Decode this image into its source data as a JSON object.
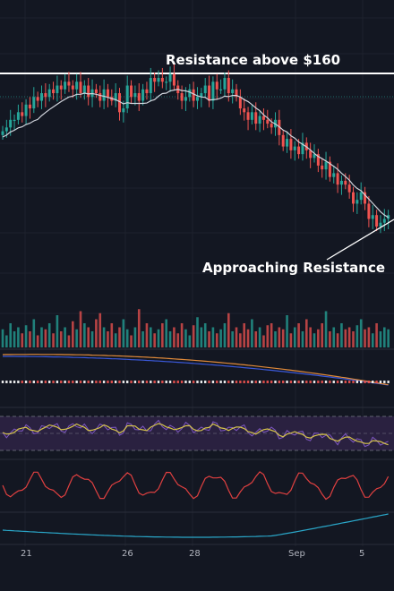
{
  "annotations": {
    "resistance_top": "Resistance above $160",
    "approaching": "Approaching Resistance"
  },
  "colors": {
    "background": "#131722",
    "grid": "#1e222d",
    "up": "#26a69a",
    "down": "#ef5350",
    "ma": "#d1d4dc",
    "rsi": "#d4c24a",
    "rsi_band": "#2a2140",
    "stoch": "#e04040",
    "cci": "#2aa7c9",
    "macd_fast": "#3a58d8",
    "macd_slow": "#e08a3a"
  },
  "chart_data": {
    "type": "line",
    "x_tick_labels": [
      "21",
      "26",
      "28",
      "Sep",
      "5"
    ],
    "panels": [
      "price",
      "volume",
      "macd",
      "rsi",
      "stochastic",
      "cci"
    ],
    "price_close": [
      147,
      148,
      150,
      150,
      152,
      151,
      154,
      153,
      156,
      155,
      157,
      156,
      158,
      157,
      159,
      158,
      160,
      159,
      158,
      160,
      157,
      159,
      156,
      158,
      157,
      155,
      158,
      156,
      155,
      157,
      152,
      153,
      159,
      156,
      157,
      155,
      158,
      157,
      161,
      160,
      161,
      160,
      160,
      162,
      159,
      157,
      155,
      156,
      158,
      155,
      156,
      157,
      159,
      155,
      160,
      158,
      158,
      161,
      157,
      158,
      156,
      153,
      152,
      150,
      152,
      149,
      151,
      150,
      149,
      148,
      150,
      146,
      143,
      145,
      142,
      143,
      141,
      144,
      142,
      140,
      141,
      138,
      137,
      139,
      135,
      136,
      133,
      134,
      133,
      131,
      128,
      129,
      131,
      128,
      124,
      125,
      122,
      123,
      124,
      125
    ],
    "series": [
      {
        "name": "",
        "values": [
          0.45,
          0.3,
          0.6,
          0.4,
          0.5,
          0.35,
          0.55,
          0.4,
          0.7,
          0.3,
          0.5,
          0.45,
          0.6,
          0.35,
          0.8,
          0.4,
          0.5,
          0.3,
          0.65,
          0.45,
          0.9,
          0.6,
          0.5,
          0.4,
          0.7,
          0.85,
          0.5,
          0.4,
          0.6,
          0.35,
          0.5,
          0.7,
          0.45,
          0.3,
          0.5,
          0.95,
          0.4,
          0.6,
          0.5,
          0.35,
          0.45,
          0.6,
          0.7,
          0.4,
          0.5,
          0.35,
          0.6,
          0.45,
          0.3,
          0.55,
          0.75,
          0.5,
          0.6,
          0.4,
          0.5,
          0.35,
          0.45,
          0.6,
          0.85,
          0.4,
          0.5,
          0.35,
          0.6,
          0.45,
          0.7,
          0.4,
          0.5,
          0.3,
          0.55,
          0.6,
          0.4,
          0.5,
          0.45,
          0.8,
          0.35,
          0.5,
          0.6,
          0.4,
          0.7,
          0.5,
          0.35,
          0.45,
          0.6,
          0.9,
          0.4,
          0.5,
          0.35,
          0.6,
          0.45,
          0.5,
          0.4,
          0.55,
          0.7,
          0.45,
          0.5,
          0.35,
          0.6,
          0.4,
          0.5,
          0.45
        ]
      }
    ]
  }
}
